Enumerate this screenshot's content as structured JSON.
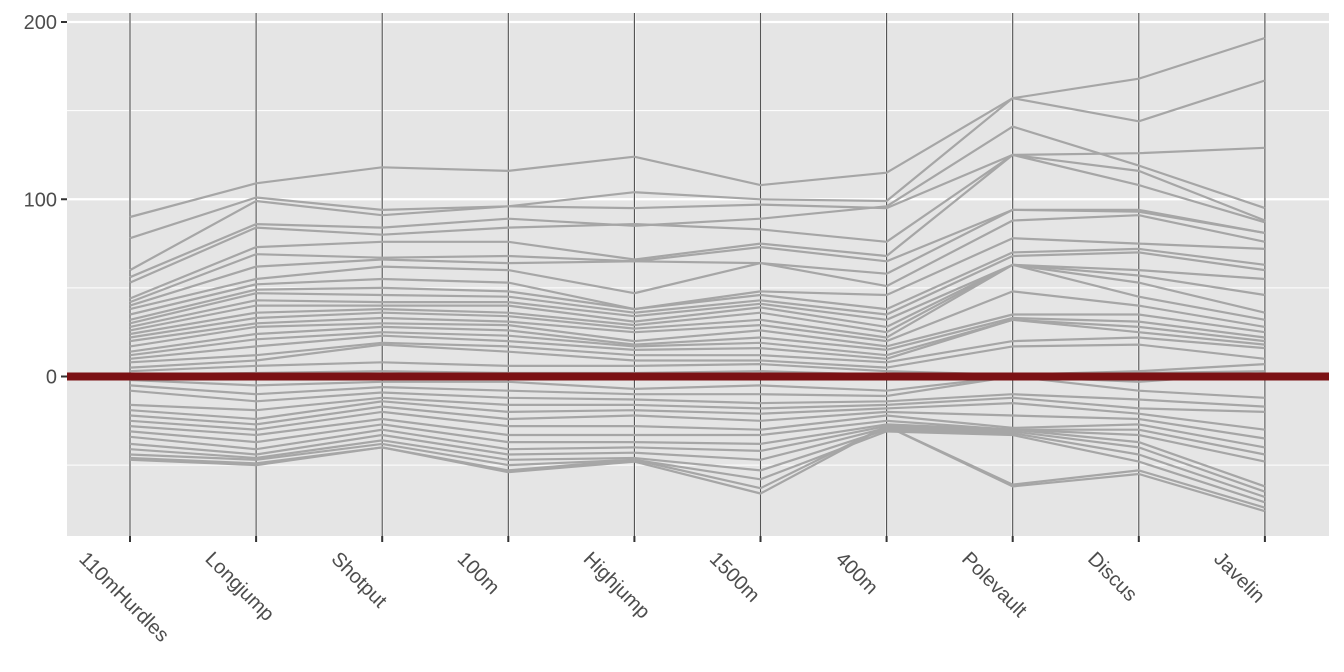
{
  "chart_data": {
    "type": "line",
    "subtype": "parallel-coordinates",
    "categories": [
      "110mHurdles",
      "Longjump",
      "Shotput",
      "100m",
      "Highjump",
      "1500m",
      "400m",
      "Polevault",
      "Discus",
      "Javelin"
    ],
    "ylim": [
      -90,
      200
    ],
    "yticks": [
      0,
      100,
      200
    ],
    "grid": true,
    "legend": "none",
    "colors": {
      "panel": "#e5e5e5",
      "line": "#a6a6a6",
      "axis_line": "#555555",
      "reference_line": "#7b1114",
      "grid": "#ffffff"
    },
    "reference_line": {
      "y": 0
    },
    "series": [
      {
        "values": [
          90,
          109,
          118,
          116,
          124,
          108,
          115,
          157,
          168,
          191
        ]
      },
      {
        "values": [
          78,
          101,
          94,
          96,
          104,
          100,
          99,
          157,
          144,
          167
        ]
      },
      {
        "values": [
          60,
          99,
          91,
          96,
          95,
          97,
          95,
          125,
          126,
          129
        ]
      },
      {
        "values": [
          56,
          86,
          84,
          89,
          85,
          89,
          96,
          141,
          119,
          95
        ]
      },
      {
        "values": [
          53,
          84,
          80,
          84,
          86,
          83,
          76,
          125,
          116,
          88
        ]
      },
      {
        "values": [
          44,
          73,
          76,
          76,
          66,
          75,
          68,
          125,
          108,
          87
        ]
      },
      {
        "values": [
          42,
          69,
          67,
          68,
          65,
          73,
          65,
          94,
          94,
          81
        ]
      },
      {
        "values": [
          40,
          62,
          66,
          64,
          65,
          64,
          58,
          94,
          93,
          81
        ]
      },
      {
        "values": [
          38,
          55,
          62,
          60,
          47,
          64,
          51,
          88,
          91,
          76
        ]
      },
      {
        "values": [
          35,
          52,
          55,
          53,
          38,
          48,
          46,
          78,
          75,
          72
        ]
      },
      {
        "values": [
          32,
          49,
          50,
          48,
          38,
          46,
          38,
          70,
          72,
          63
        ]
      },
      {
        "values": [
          30,
          47,
          46,
          45,
          36,
          43,
          35,
          68,
          70,
          60
        ]
      },
      {
        "values": [
          28,
          43,
          42,
          42,
          34,
          41,
          32,
          63,
          60,
          55
        ]
      },
      {
        "values": [
          26,
          40,
          40,
          40,
          31,
          39,
          28,
          63,
          57,
          46
        ]
      },
      {
        "values": [
          24,
          36,
          38,
          36,
          29,
          36,
          25,
          63,
          53,
          36
        ]
      },
      {
        "values": [
          22,
          33,
          36,
          34,
          27,
          32,
          22,
          63,
          45,
          32
        ]
      },
      {
        "values": [
          20,
          30,
          33,
          31,
          25,
          29,
          20,
          48,
          40,
          28
        ]
      },
      {
        "values": [
          17,
          28,
          30,
          29,
          20,
          26,
          17,
          35,
          35,
          25
        ]
      },
      {
        "values": [
          14,
          24,
          28,
          26,
          18,
          22,
          15,
          33,
          31,
          22
        ]
      },
      {
        "values": [
          12,
          21,
          25,
          23,
          17,
          19,
          12,
          32,
          28,
          20
        ]
      },
      {
        "values": [
          10,
          17,
          23,
          20,
          15,
          16,
          10,
          32,
          25,
          18
        ]
      },
      {
        "values": [
          8,
          12,
          19,
          17,
          12,
          12,
          8,
          20,
          22,
          16
        ]
      },
      {
        "values": [
          5,
          9,
          18,
          14,
          9,
          9,
          5,
          17,
          18,
          10
        ]
      },
      {
        "values": [
          3,
          6,
          8,
          6,
          6,
          7,
          3,
          1,
          3,
          7
        ]
      },
      {
        "values": [
          1,
          2,
          3,
          2,
          2,
          3,
          1,
          0,
          2,
          3
        ]
      },
      {
        "values": [
          -2,
          -5,
          -3,
          -3,
          -7,
          -5,
          -8,
          0,
          -3,
          2
        ]
      },
      {
        "values": [
          -5,
          -10,
          -6,
          -8,
          -10,
          -10,
          -11,
          0,
          -8,
          -12
        ]
      },
      {
        "values": [
          -8,
          -14,
          -9,
          -12,
          -13,
          -15,
          -14,
          -10,
          -13,
          -17
        ]
      },
      {
        "values": [
          -16,
          -19,
          -12,
          -16,
          -16,
          -18,
          -16,
          -12,
          -18,
          -20
        ]
      },
      {
        "values": [
          -19,
          -24,
          -14,
          -20,
          -19,
          -21,
          -18,
          -15,
          -21,
          -30
        ]
      },
      {
        "values": [
          -22,
          -27,
          -17,
          -24,
          -22,
          -25,
          -20,
          -22,
          -24,
          -35
        ]
      },
      {
        "values": [
          -25,
          -30,
          -20,
          -28,
          -28,
          -30,
          -22,
          -29,
          -27,
          -40
        ]
      },
      {
        "values": [
          -28,
          -33,
          -24,
          -33,
          -33,
          -33,
          -25,
          -30,
          -30,
          -44
        ]
      },
      {
        "values": [
          -31,
          -37,
          -27,
          -37,
          -37,
          -38,
          -27,
          -30,
          -33,
          -48
        ]
      },
      {
        "values": [
          -34,
          -41,
          -30,
          -41,
          -40,
          -42,
          -28,
          -30,
          -37,
          -62
        ]
      },
      {
        "values": [
          -38,
          -44,
          -33,
          -44,
          -43,
          -47,
          -29,
          -31,
          -40,
          -65
        ]
      },
      {
        "values": [
          -41,
          -46,
          -36,
          -47,
          -46,
          -53,
          -30,
          -32,
          -44,
          -68
        ]
      },
      {
        "values": [
          -44,
          -47,
          -38,
          -50,
          -47,
          -58,
          -31,
          -33,
          -48,
          -71
        ]
      },
      {
        "values": [
          -46,
          -49,
          -40,
          -53,
          -47,
          -63,
          -28,
          -61,
          -53,
          -74
        ]
      },
      {
        "values": [
          -47,
          -50,
          -40,
          -54,
          -48,
          -66,
          -28,
          -62,
          -55,
          -76
        ]
      }
    ]
  }
}
